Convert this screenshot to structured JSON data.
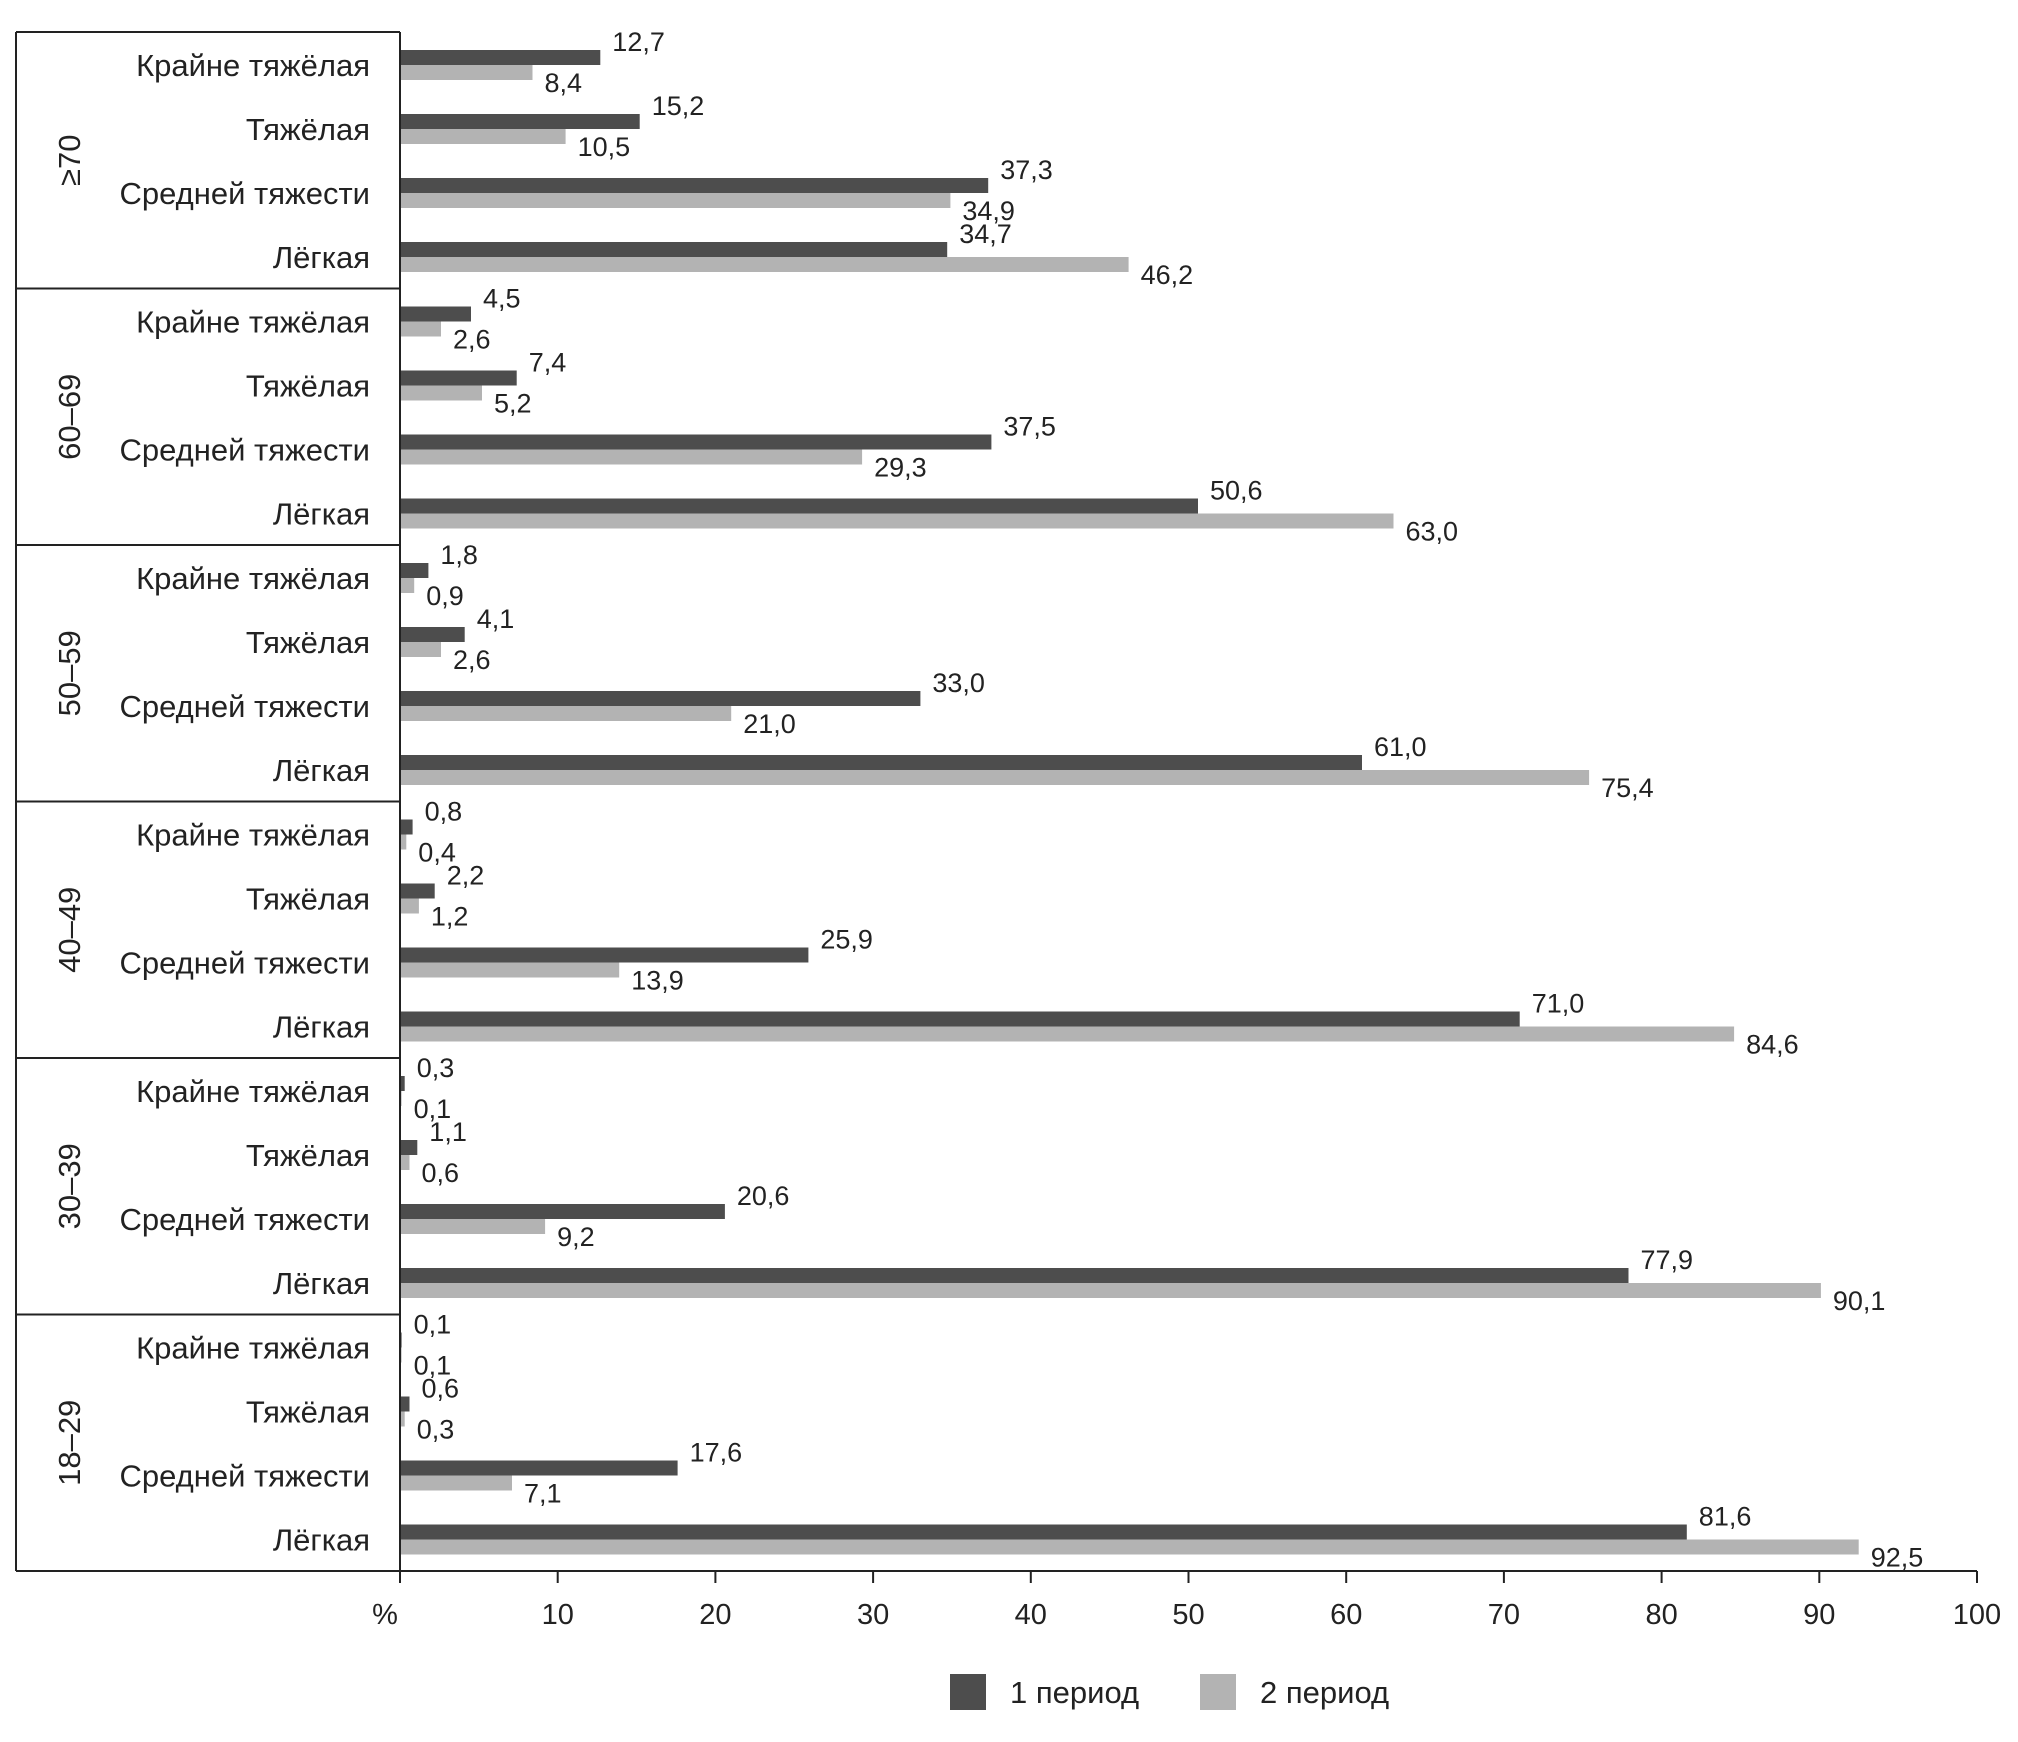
{
  "chart_data": {
    "type": "bar",
    "orientation": "horizontal",
    "x_axis_unit": "%",
    "xlim": [
      0,
      100
    ],
    "x_ticks": [
      10,
      20,
      30,
      40,
      50,
      60,
      70,
      80,
      90,
      100
    ],
    "series": [
      {
        "name": "1 период",
        "color": "#4d4d4d"
      },
      {
        "name": "2 период",
        "color": "#b3b3b3"
      }
    ],
    "groups": [
      {
        "label": "≥70",
        "rows": [
          {
            "category": "Крайне тяжёлая",
            "values": [
              12.7,
              8.4
            ],
            "labels": [
              "12,7",
              "8,4"
            ]
          },
          {
            "category": "Тяжёлая",
            "values": [
              15.2,
              10.5
            ],
            "labels": [
              "15,2",
              "10,5"
            ]
          },
          {
            "category": "Средней тяжести",
            "values": [
              37.3,
              34.9
            ],
            "labels": [
              "37,3",
              "34,9"
            ]
          },
          {
            "category": "Лёгкая",
            "values": [
              34.7,
              46.2
            ],
            "labels": [
              "34,7",
              "46,2"
            ]
          }
        ]
      },
      {
        "label": "60–69",
        "rows": [
          {
            "category": "Крайне тяжёлая",
            "values": [
              4.5,
              2.6
            ],
            "labels": [
              "4,5",
              "2,6"
            ]
          },
          {
            "category": "Тяжёлая",
            "values": [
              7.4,
              5.2
            ],
            "labels": [
              "7,4",
              "5,2"
            ]
          },
          {
            "category": "Средней тяжести",
            "values": [
              37.5,
              29.3
            ],
            "labels": [
              "37,5",
              "29,3"
            ]
          },
          {
            "category": "Лёгкая",
            "values": [
              50.6,
              63.0
            ],
            "labels": [
              "50,6",
              "63,0"
            ]
          }
        ]
      },
      {
        "label": "50–59",
        "rows": [
          {
            "category": "Крайне тяжёлая",
            "values": [
              1.8,
              0.9
            ],
            "labels": [
              "1,8",
              "0,9"
            ]
          },
          {
            "category": "Тяжёлая",
            "values": [
              4.1,
              2.6
            ],
            "labels": [
              "4,1",
              "2,6"
            ]
          },
          {
            "category": "Средней тяжести",
            "values": [
              33.0,
              21.0
            ],
            "labels": [
              "33,0",
              "21,0"
            ]
          },
          {
            "category": "Лёгкая",
            "values": [
              61.0,
              75.4
            ],
            "labels": [
              "61,0",
              "75,4"
            ]
          }
        ]
      },
      {
        "label": "40–49",
        "rows": [
          {
            "category": "Крайне тяжёлая",
            "values": [
              0.8,
              0.4
            ],
            "labels": [
              "0,8",
              "0,4"
            ]
          },
          {
            "category": "Тяжёлая",
            "values": [
              2.2,
              1.2
            ],
            "labels": [
              "2,2",
              "1,2"
            ]
          },
          {
            "category": "Средней тяжести",
            "values": [
              25.9,
              13.9
            ],
            "labels": [
              "25,9",
              "13,9"
            ]
          },
          {
            "category": "Лёгкая",
            "values": [
              71.0,
              84.6
            ],
            "labels": [
              "71,0",
              "84,6"
            ]
          }
        ]
      },
      {
        "label": "30–39",
        "rows": [
          {
            "category": "Крайне тяжёлая",
            "values": [
              0.3,
              0.1
            ],
            "labels": [
              "0,3",
              "0,1"
            ]
          },
          {
            "category": "Тяжёлая",
            "values": [
              1.1,
              0.6
            ],
            "labels": [
              "1,1",
              "0,6"
            ]
          },
          {
            "category": "Средней тяжести",
            "values": [
              20.6,
              9.2
            ],
            "labels": [
              "20,6",
              "9,2"
            ]
          },
          {
            "category": "Лёгкая",
            "values": [
              77.9,
              90.1
            ],
            "labels": [
              "77,9",
              "90,1"
            ]
          }
        ]
      },
      {
        "label": "18–29",
        "rows": [
          {
            "category": "Крайне тяжёлая",
            "values": [
              0.1,
              0.1
            ],
            "labels": [
              "0,1",
              "0,1"
            ]
          },
          {
            "category": "Тяжёлая",
            "values": [
              0.6,
              0.3
            ],
            "labels": [
              "0,6",
              "0,3"
            ]
          },
          {
            "category": "Средней тяжести",
            "values": [
              17.6,
              7.1
            ],
            "labels": [
              "17,6",
              "7,1"
            ]
          },
          {
            "category": "Лёгкая",
            "values": [
              81.6,
              92.5
            ],
            "labels": [
              "81,6",
              "92,5"
            ]
          }
        ]
      }
    ]
  }
}
